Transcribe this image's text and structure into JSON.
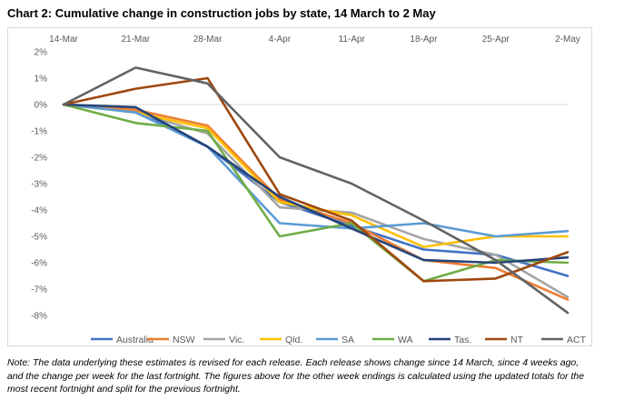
{
  "title": "Chart 2: Cumulative change in construction jobs by state, 14 March to 2 May",
  "note": "Note: The data underlying these estimates is revised for each release. Each release shows change since 14 March, since 4 weeks ago, and the change per week for the last fortnight. The figures above for the other week endings is calculated using the updated totals for the most recent fortnight and split for the previous fortnight.",
  "chart_data": {
    "type": "line",
    "title": "Chart 2: Cumulative change in construction jobs by state, 14 March to 2 May",
    "xlabel": "",
    "ylabel": "",
    "x": [
      "14-Mar",
      "21-Mar",
      "28-Mar",
      "4-Apr",
      "11-Apr",
      "18-Apr",
      "25-Apr",
      "2-May"
    ],
    "y_ticks": [
      "2%",
      "1%",
      "0%",
      "-1%",
      "-2%",
      "-3%",
      "-4%",
      "-5%",
      "-6%",
      "-7%",
      "-8%"
    ],
    "ylim": [
      -8,
      2
    ],
    "grid": false,
    "legend_position": "bottom",
    "series": [
      {
        "name": "Australia",
        "color": "#4472c4",
        "values": [
          0,
          -0.2,
          -1.6,
          -3.7,
          -4.6,
          -5.5,
          -5.7,
          -6.5
        ]
      },
      {
        "name": "NSW",
        "color": "#ed7d31",
        "values": [
          0,
          -0.2,
          -0.8,
          -3.6,
          -4.5,
          -5.9,
          -6.2,
          -7.4
        ]
      },
      {
        "name": "Vic.",
        "color": "#a5a5a5",
        "values": [
          0,
          -0.3,
          -1.1,
          -3.9,
          -4.1,
          -5.1,
          -5.7,
          -7.3
        ]
      },
      {
        "name": "Qld.",
        "color": "#ffc000",
        "values": [
          0,
          -0.3,
          -0.9,
          -3.7,
          -4.2,
          -5.4,
          -5.0,
          -5.0
        ]
      },
      {
        "name": "SA",
        "color": "#5b9bd5",
        "values": [
          0,
          -0.3,
          -1.6,
          -4.5,
          -4.7,
          -4.5,
          -5.0,
          -4.8
        ]
      },
      {
        "name": "WA",
        "color": "#70ad47",
        "values": [
          0,
          -0.7,
          -1.0,
          -5.0,
          -4.5,
          -6.7,
          -5.9,
          -6.0
        ]
      },
      {
        "name": "Tas.",
        "color": "#264478",
        "values": [
          0,
          -0.1,
          -1.6,
          -3.5,
          -4.7,
          -5.9,
          -6.0,
          -5.8
        ]
      },
      {
        "name": "NT",
        "color": "#9e480e",
        "values": [
          0,
          0.6,
          1.0,
          -3.4,
          -4.4,
          -6.7,
          -6.6,
          -5.6
        ]
      },
      {
        "name": "ACT",
        "color": "#636363",
        "values": [
          0,
          1.4,
          0.8,
          -2.0,
          -3.0,
          -4.4,
          -5.9,
          -7.9
        ]
      }
    ]
  }
}
